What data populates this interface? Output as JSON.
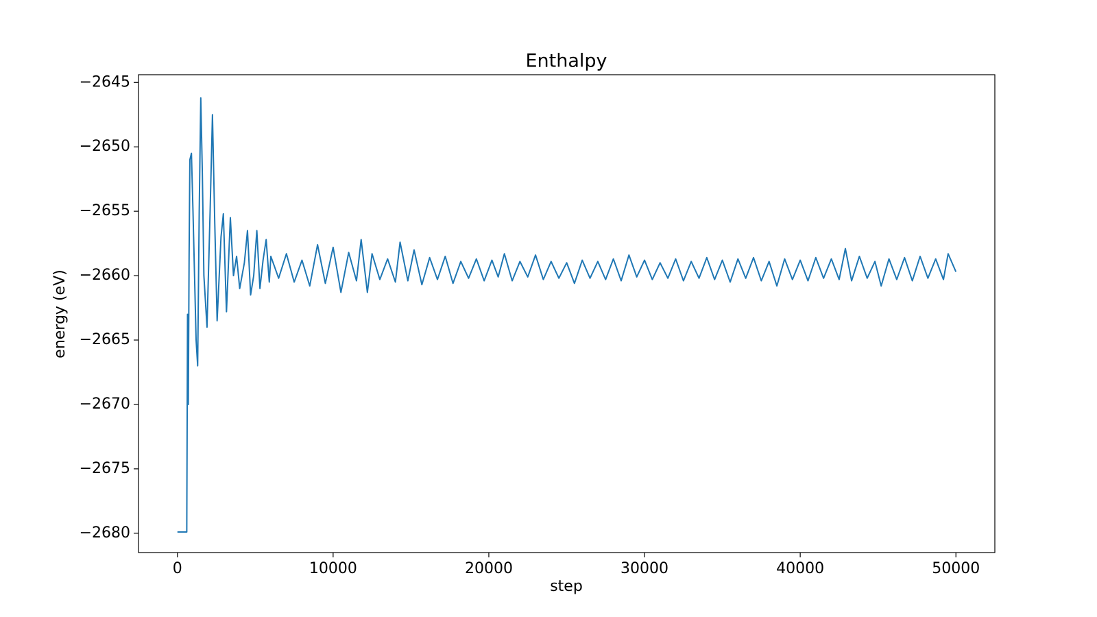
{
  "chart_data": {
    "type": "line",
    "title": "Enthalpy",
    "xlabel": "step",
    "ylabel": "energy (eV)",
    "color": "#1f77b4",
    "x": [
      0,
      600,
      650,
      700,
      750,
      800,
      900,
      1000,
      1100,
      1200,
      1300,
      1400,
      1500,
      1600,
      1700,
      1900,
      2100,
      2250,
      2400,
      2550,
      2800,
      2950,
      3150,
      3400,
      3600,
      3800,
      4000,
      4300,
      4500,
      4700,
      4900,
      5100,
      5300,
      5500,
      5700,
      5900,
      6000,
      6500,
      7000,
      7500,
      8000,
      8500,
      9000,
      9500,
      10000,
      10500,
      11000,
      11500,
      11800,
      12200,
      12500,
      13000,
      13500,
      14000,
      14300,
      14800,
      15200,
      15700,
      16200,
      16700,
      17200,
      17700,
      18200,
      18700,
      19200,
      19700,
      20200,
      20600,
      21000,
      21500,
      22000,
      22500,
      23000,
      23500,
      24000,
      24500,
      25000,
      25500,
      26000,
      26500,
      27000,
      27500,
      28000,
      28500,
      29000,
      29500,
      30000,
      30500,
      31000,
      31500,
      32000,
      32500,
      33000,
      33500,
      34000,
      34500,
      35000,
      35500,
      36000,
      36500,
      37000,
      37500,
      38000,
      38500,
      39000,
      39500,
      40000,
      40500,
      41000,
      41500,
      42000,
      42500,
      42900,
      43300,
      43800,
      44300,
      44800,
      45200,
      45700,
      46200,
      46700,
      47200,
      47700,
      48200,
      48700,
      49200,
      49500,
      50000
    ],
    "values": [
      -2679.9,
      -2679.9,
      -2663,
      -2670,
      -2658.5,
      -2651,
      -2650.5,
      -2655,
      -2660,
      -2665,
      -2667,
      -2655,
      -2646.2,
      -2652,
      -2660,
      -2664,
      -2655,
      -2647.5,
      -2656,
      -2663.5,
      -2657,
      -2655.2,
      -2662.8,
      -2655.5,
      -2660,
      -2658.5,
      -2661,
      -2659,
      -2656.5,
      -2661.5,
      -2660,
      -2656.5,
      -2661,
      -2658.8,
      -2657.2,
      -2660.5,
      -2658.5,
      -2660.2,
      -2658.3,
      -2660.5,
      -2658.8,
      -2660.8,
      -2657.6,
      -2660.6,
      -2657.8,
      -2661.3,
      -2658.2,
      -2660.4,
      -2657.2,
      -2661.3,
      -2658.3,
      -2660.3,
      -2658.7,
      -2660.5,
      -2657.4,
      -2660.4,
      -2658.0,
      -2660.7,
      -2658.6,
      -2660.3,
      -2658.5,
      -2660.6,
      -2658.9,
      -2660.2,
      -2658.7,
      -2660.4,
      -2658.8,
      -2660.1,
      -2658.3,
      -2660.4,
      -2658.9,
      -2660.1,
      -2658.4,
      -2660.3,
      -2658.9,
      -2660.2,
      -2659.0,
      -2660.6,
      -2658.8,
      -2660.2,
      -2658.9,
      -2660.3,
      -2658.7,
      -2660.4,
      -2658.4,
      -2660.1,
      -2658.8,
      -2660.3,
      -2659.0,
      -2660.2,
      -2658.7,
      -2660.4,
      -2658.9,
      -2660.2,
      -2658.6,
      -2660.3,
      -2658.8,
      -2660.5,
      -2658.7,
      -2660.2,
      -2658.6,
      -2660.4,
      -2658.9,
      -2660.8,
      -2658.7,
      -2660.3,
      -2658.8,
      -2660.4,
      -2658.6,
      -2660.2,
      -2658.7,
      -2660.3,
      -2657.9,
      -2660.4,
      -2658.5,
      -2660.2,
      -2658.9,
      -2660.8,
      -2658.7,
      -2660.3,
      -2658.6,
      -2660.4,
      -2658.5,
      -2660.2,
      -2658.7,
      -2660.3,
      -2658.3,
      -2659.7
    ],
    "xlim": [
      -2500,
      52500
    ],
    "xticks": [
      0,
      10000,
      20000,
      30000,
      40000,
      50000
    ],
    "ylim": [
      -2681.5,
      -2644.4
    ],
    "yticks": [
      {
        "value": -2680,
        "label": "−2680"
      },
      {
        "value": -2675,
        "label": "−2675"
      },
      {
        "value": -2670,
        "label": "−2670"
      },
      {
        "value": -2665,
        "label": "−2665"
      },
      {
        "value": -2660,
        "label": "−2660"
      },
      {
        "value": -2655,
        "label": "−2655"
      },
      {
        "value": -2650,
        "label": "−2650"
      },
      {
        "value": -2645,
        "label": "−2645"
      }
    ]
  }
}
